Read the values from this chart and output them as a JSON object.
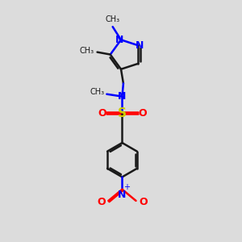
{
  "bg_color": "#dcdcdc",
  "bond_color": "#1a1a1a",
  "nitrogen_color": "#0000ff",
  "oxygen_color": "#ff0000",
  "sulfur_color": "#cccc00",
  "line_width": 1.8,
  "fig_size": [
    3.0,
    3.0
  ],
  "dpi": 100,
  "xlim": [
    0,
    10
  ],
  "ylim": [
    0,
    10
  ]
}
